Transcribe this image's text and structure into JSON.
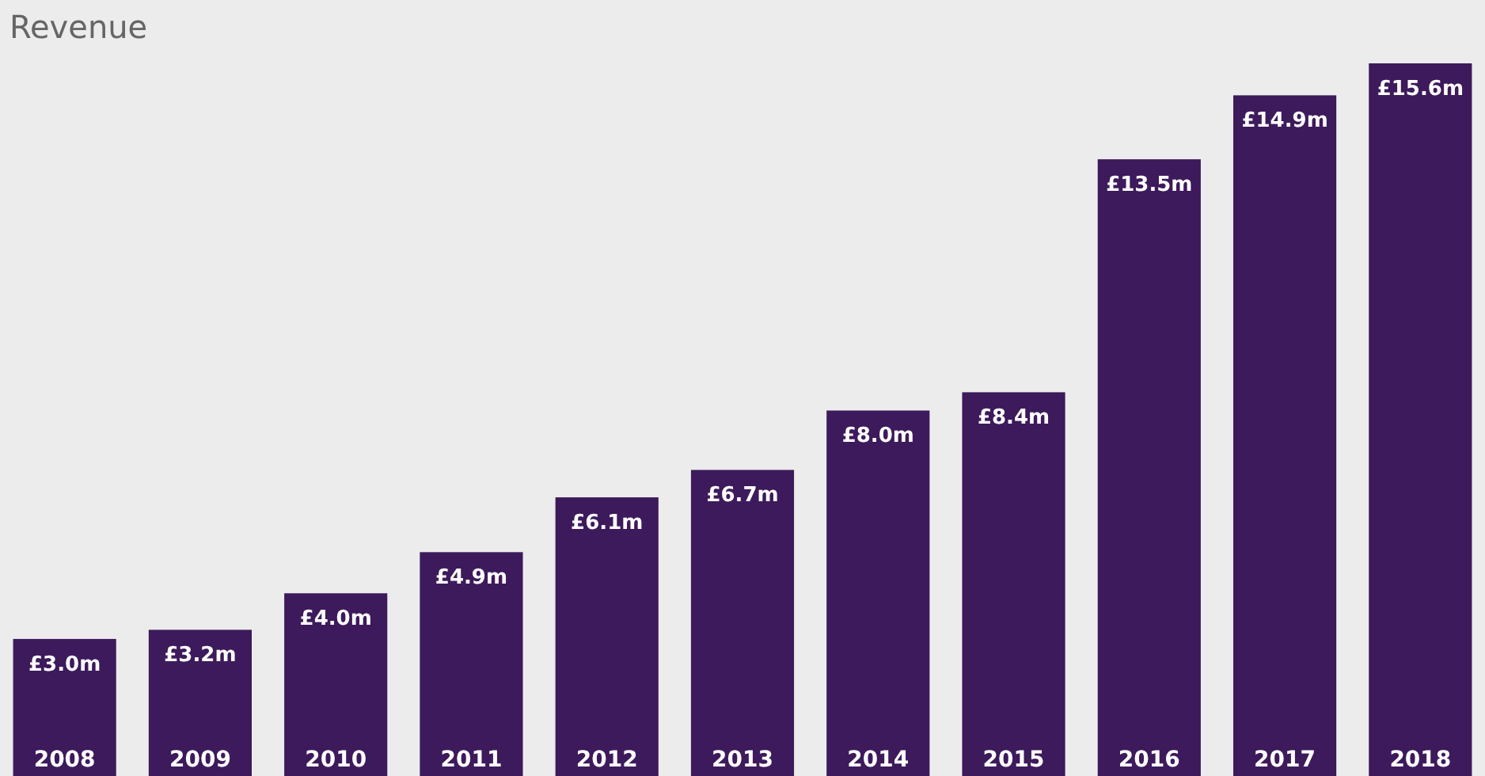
{
  "chart_data": {
    "type": "bar",
    "title": "Revenue",
    "categories": [
      "2008",
      "2009",
      "2010",
      "2011",
      "2012",
      "2013",
      "2014",
      "2015",
      "2016",
      "2017",
      "2018"
    ],
    "values": [
      3.0,
      3.2,
      4.0,
      4.9,
      6.1,
      6.7,
      8.0,
      8.4,
      13.5,
      14.9,
      15.6
    ],
    "value_labels": [
      "£3.0m",
      "£3.2m",
      "£4.0m",
      "£4.9m",
      "£6.1m",
      "£6.7m",
      "£8.0m",
      "£8.4m",
      "£13.5m",
      "£14.9m",
      "£15.6m"
    ],
    "color": "#3d1a5b"
  }
}
